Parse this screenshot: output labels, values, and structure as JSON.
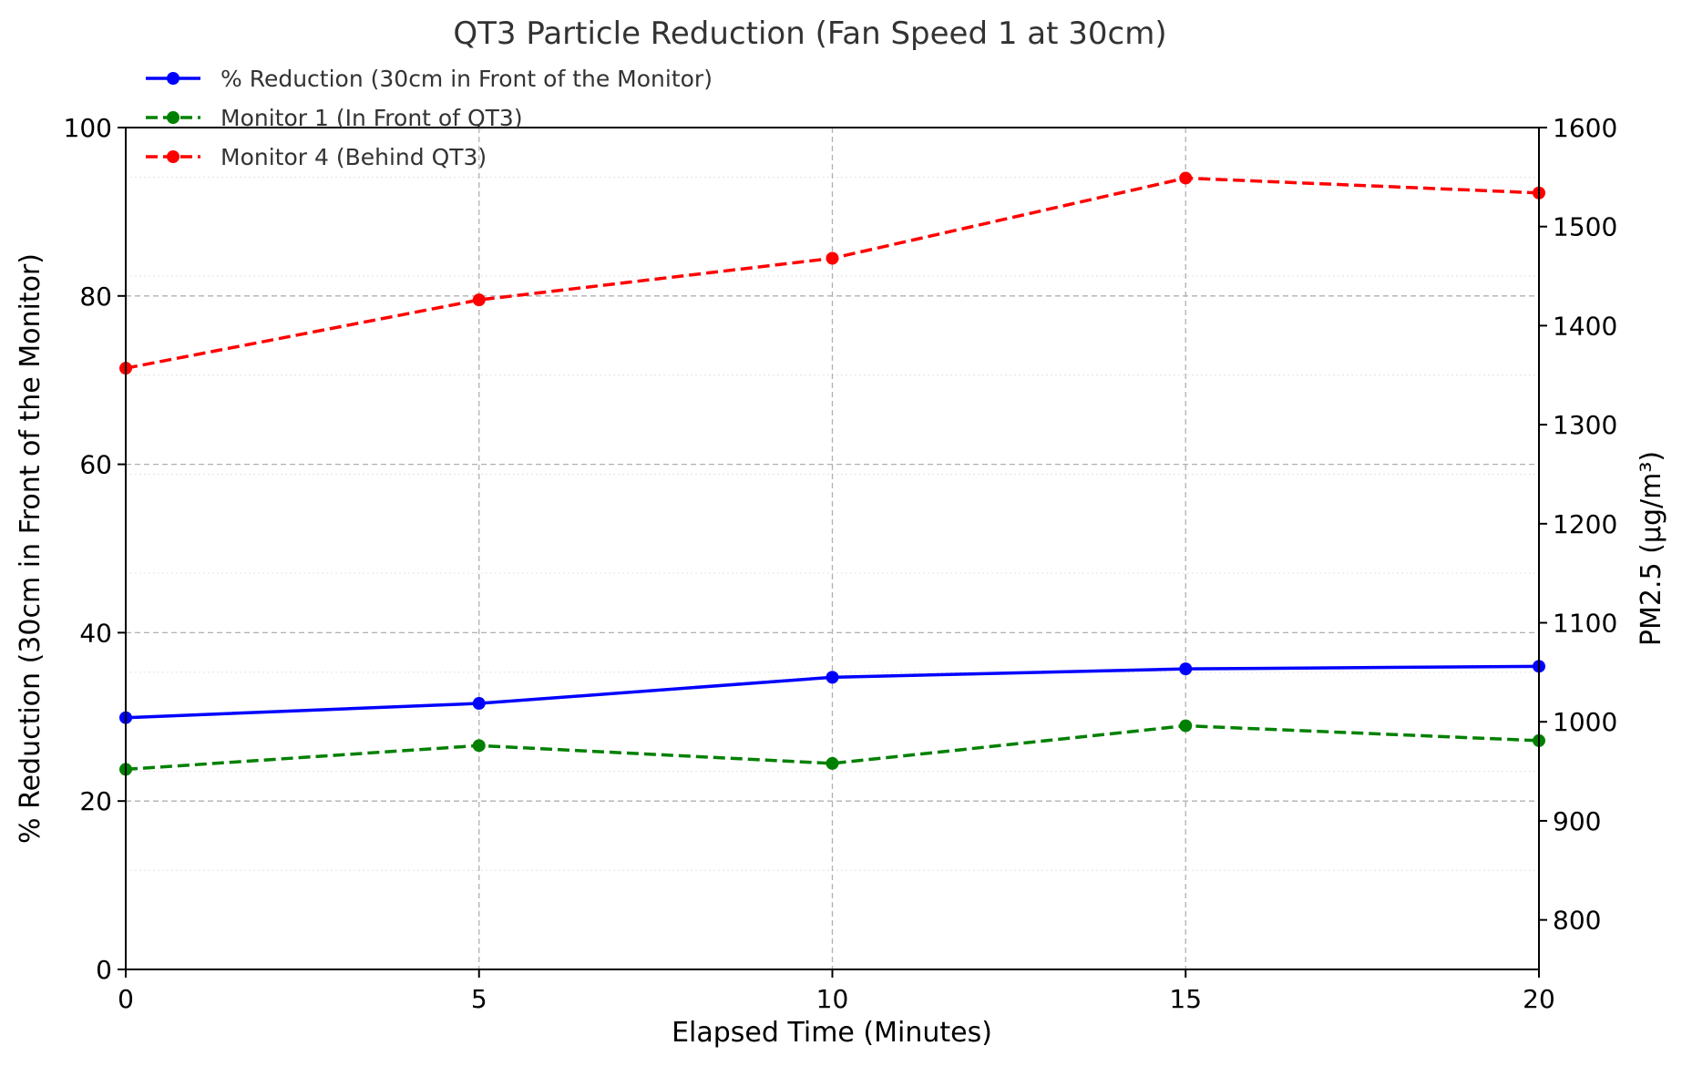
{
  "chart_data": {
    "type": "line",
    "title": "QT3 Particle Reduction (Fan Speed 1 at 30cm)",
    "xlabel": "Elapsed Time (Minutes)",
    "ylabel": "% Reduction (30cm in Front of the Monitor)",
    "y2label": "PM2.5 (µg/m³)",
    "xlim": [
      0,
      20
    ],
    "ylim": [
      0,
      100
    ],
    "y2lim": [
      750,
      1600
    ],
    "xticks": [
      0,
      5,
      10,
      15,
      20
    ],
    "yticks": [
      0,
      20,
      40,
      60,
      80,
      100
    ],
    "y2ticks": [
      800,
      900,
      1000,
      1100,
      1200,
      1300,
      1400,
      1500,
      1600
    ],
    "grid": true,
    "legend_position": "top-left",
    "x": [
      0,
      5,
      10,
      15,
      20
    ],
    "series": [
      {
        "name": "% Reduction (30cm in Front of the Monitor)",
        "axis": "left",
        "color": "#0000ff",
        "linestyle": "solid",
        "values": [
          29.9,
          31.6,
          34.7,
          35.7,
          36.0
        ]
      },
      {
        "name": "Monitor 1 (In Front of QT3)",
        "axis": "right",
        "color": "#008000",
        "linestyle": "dashed",
        "values": [
          952,
          976,
          958,
          996,
          981
        ]
      },
      {
        "name": "Monitor 4 (Behind QT3)",
        "axis": "right",
        "color": "#ff0000",
        "linestyle": "dashed",
        "values": [
          1357,
          1426,
          1468,
          1549,
          1534
        ]
      }
    ]
  }
}
